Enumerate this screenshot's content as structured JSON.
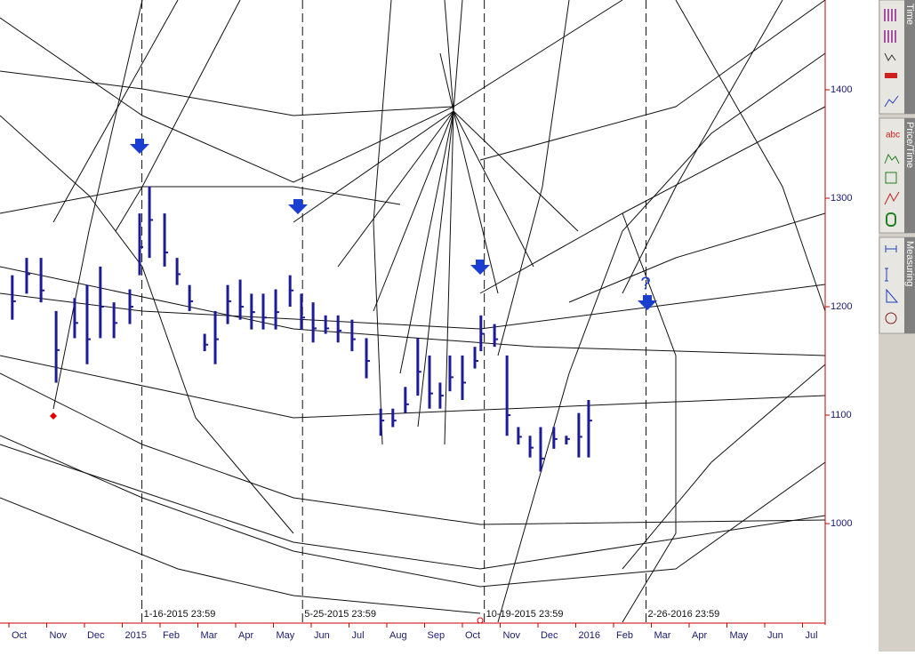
{
  "chart_data": {
    "type": "ohlc",
    "x": [
      0.09,
      0.47,
      0.85,
      1.25,
      1.74,
      2.07,
      2.42,
      2.78,
      3.2,
      3.46,
      3.72,
      4.12,
      4.45,
      4.78,
      5.18,
      5.46,
      5.79,
      6.12,
      6.42,
      6.73,
      7.06,
      7.44,
      7.74,
      8.05,
      8.38,
      8.71,
      9.08,
      9.46,
      9.84,
      10.16,
      10.49,
      10.82,
      11.13,
      11.41,
      11.67,
      12.0,
      12.33,
      12.49,
      12.85,
      13.18,
      13.48,
      13.79,
      14.07,
      14.42,
      14.75,
      15.08,
      15.34
    ],
    "high": [
      1229,
      1245,
      1245,
      1196,
      1208,
      1220,
      1237,
      1204,
      1216,
      1286,
      1311,
      1286,
      1245,
      1220,
      1175,
      1196,
      1220,
      1225,
      1212,
      1212,
      1216,
      1229,
      1212,
      1204,
      1192,
      1192,
      1188,
      1171,
      1106,
      1106,
      1126,
      1171,
      1155,
      1130,
      1155,
      1155,
      1163,
      1192,
      1184,
      1155,
      1089,
      1081,
      1089,
      1089,
      1081,
      1102,
      1114
    ],
    "low": [
      1188,
      1212,
      1204,
      1130,
      1171,
      1147,
      1171,
      1171,
      1184,
      1229,
      1245,
      1237,
      1220,
      1196,
      1159,
      1147,
      1184,
      1188,
      1179,
      1179,
      1179,
      1200,
      1179,
      1167,
      1175,
      1167,
      1159,
      1134,
      1081,
      1089,
      1102,
      1118,
      1106,
      1106,
      1122,
      1114,
      1143,
      1159,
      1163,
      1081,
      1073,
      1061,
      1048,
      1069,
      1073,
      1061,
      1061
    ],
    "close": [
      1205,
      1230,
      1215,
      1160,
      1185,
      1170,
      1200,
      1185,
      1200,
      1255,
      1280,
      1250,
      1230,
      1205,
      1165,
      1170,
      1205,
      1200,
      1195,
      1190,
      1195,
      1215,
      1190,
      1180,
      1180,
      1178,
      1170,
      1150,
      1095,
      1095,
      1110,
      1140,
      1120,
      1118,
      1135,
      1130,
      1150,
      1175,
      1170,
      1100,
      1080,
      1070,
      1060,
      1078,
      1078,
      1080,
      1095
    ],
    "color": "#1c1c96",
    "xlim": [
      -0.235,
      21.6
    ],
    "xticks": [
      {
        "value": 0,
        "label": "Oct"
      },
      {
        "value": 1,
        "label": "Nov"
      },
      {
        "value": 2,
        "label": "Dec"
      },
      {
        "value": 3,
        "label": "2015"
      },
      {
        "value": 4,
        "label": "Feb"
      },
      {
        "value": 5,
        "label": "Mar"
      },
      {
        "value": 6,
        "label": "Apr"
      },
      {
        "value": 7,
        "label": "May"
      },
      {
        "value": 8,
        "label": "Jun"
      },
      {
        "value": 9,
        "label": "Jul"
      },
      {
        "value": 10,
        "label": "Aug"
      },
      {
        "value": 11,
        "label": "Sep"
      },
      {
        "value": 12,
        "label": "Oct"
      },
      {
        "value": 13,
        "label": "Nov"
      },
      {
        "value": 14,
        "label": "Dec"
      },
      {
        "value": 15,
        "label": "2016"
      },
      {
        "value": 16,
        "label": "Feb"
      },
      {
        "value": 17,
        "label": "Mar"
      },
      {
        "value": 18,
        "label": "Apr"
      },
      {
        "value": 19,
        "label": "May"
      },
      {
        "value": 20,
        "label": "Jun"
      },
      {
        "value": 21,
        "label": "Jul"
      }
    ],
    "ylim": [
      906.6,
      1482.8
    ],
    "yticks": [
      1000,
      1100,
      1200,
      1300,
      1400
    ],
    "vlines": [
      {
        "value": 3.52,
        "label": "1-16-2015 23:59"
      },
      {
        "value": 7.77,
        "label": "5-25-2015 23:59"
      },
      {
        "value": 12.58,
        "label": "10-19-2015 23:59"
      },
      {
        "value": 16.86,
        "label": "2-26-2016 23:59"
      }
    ],
    "annotations": [
      "?"
    ]
  },
  "toolbar": {
    "tabs": [
      "Time",
      "Price/Time",
      "Measuring"
    ],
    "labels": [
      "abc"
    ]
  }
}
